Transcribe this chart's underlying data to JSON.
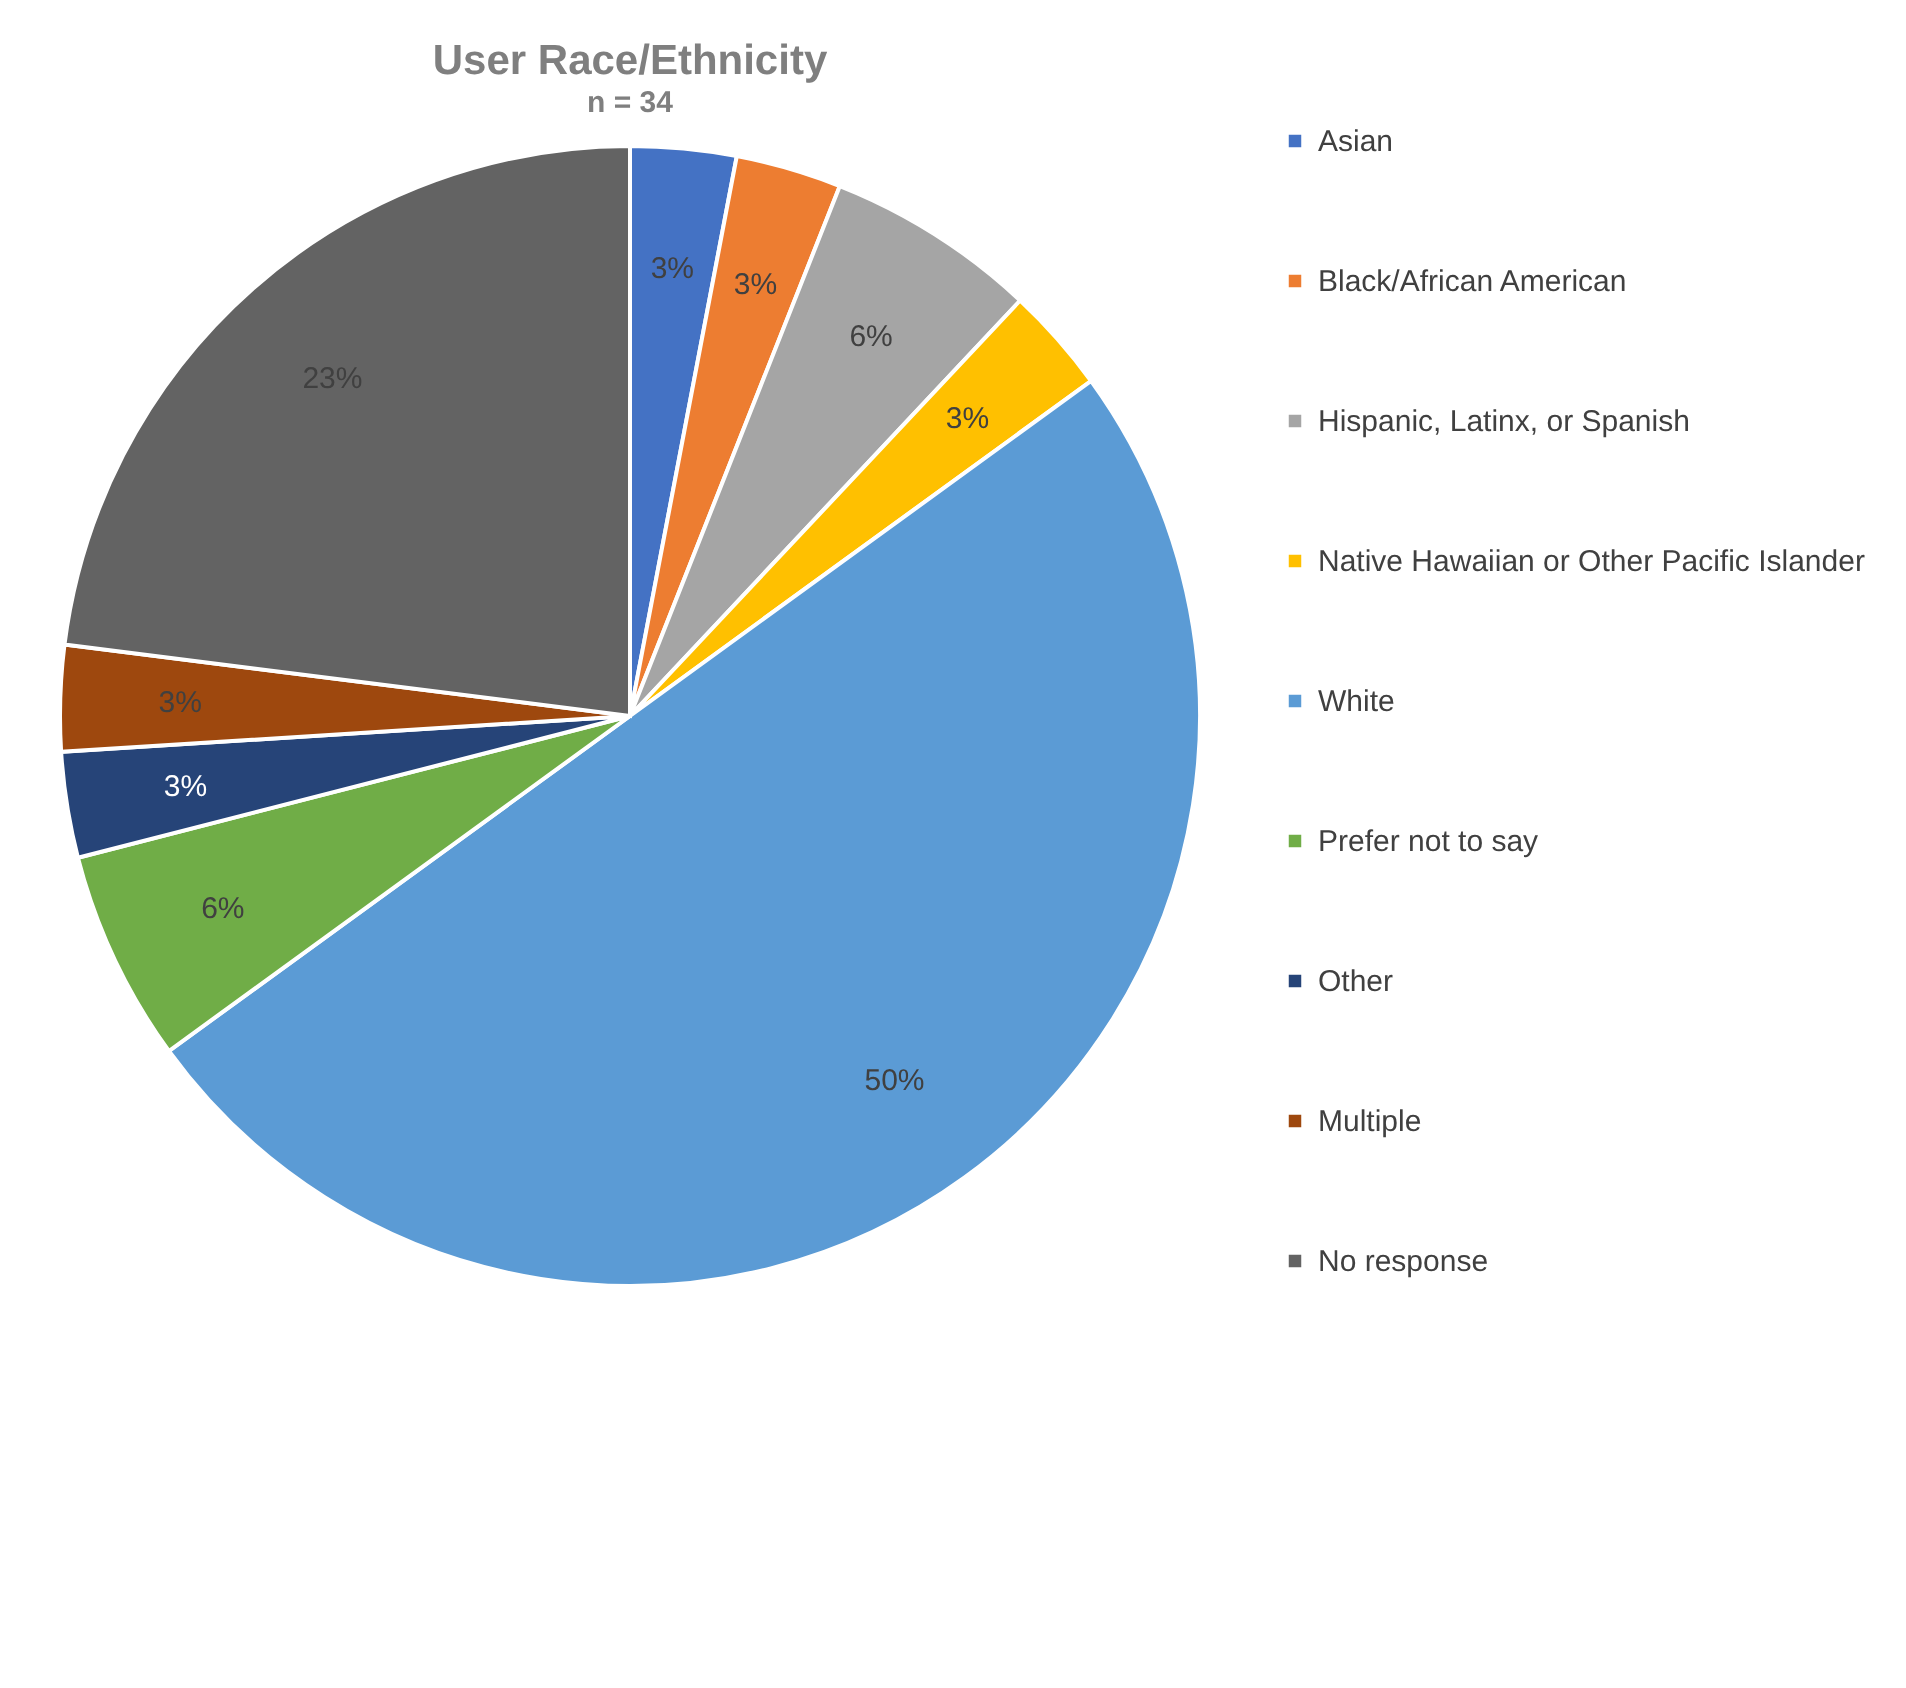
{
  "chart_data": {
    "type": "pie",
    "title": "User Race/Ethnicity",
    "subtitle": "n = 34",
    "categories": [
      "Asian",
      "Black/African American",
      "Hispanic, Latinx, or Spanish",
      "Native Hawaiian or Other Pacific Islander",
      "White",
      "Prefer not to say",
      "Other",
      "Multiple",
      "No response"
    ],
    "values": [
      3,
      3,
      6,
      3,
      50,
      6,
      3,
      3,
      23
    ],
    "value_labels": [
      "3%",
      "3%",
      "6%",
      "3%",
      "50%",
      "6%",
      "3%",
      "3%",
      "23%"
    ],
    "colors": [
      "#4472c4",
      "#ed7d31",
      "#a5a5a5",
      "#ffc000",
      "#5b9bd5",
      "#70ad47",
      "#264478",
      "#9e480e",
      "#636363"
    ],
    "legend": "right"
  }
}
